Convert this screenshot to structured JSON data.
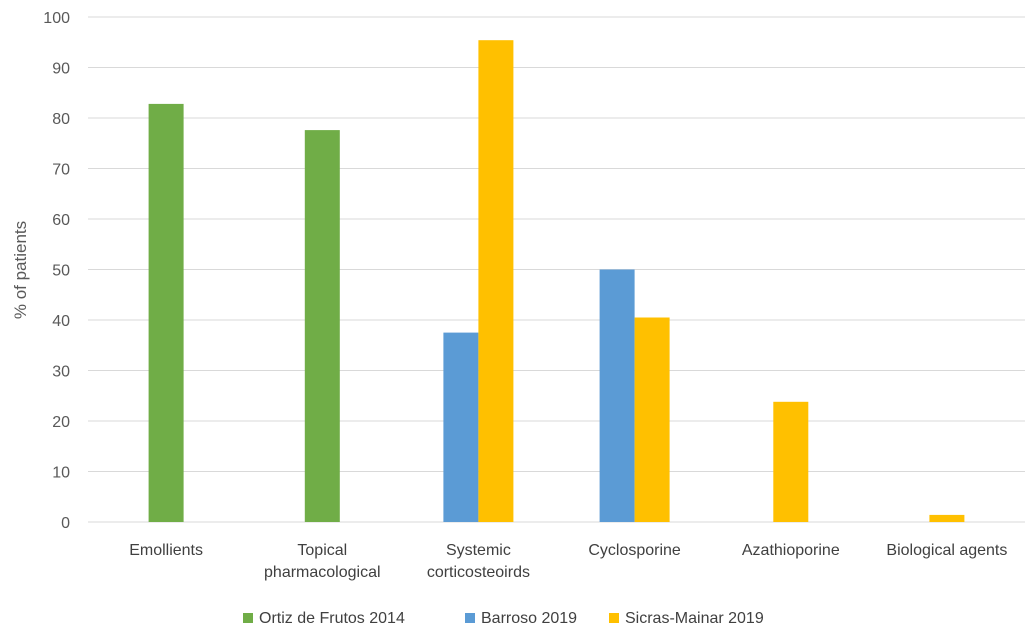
{
  "chart_data": {
    "type": "bar",
    "title": "",
    "xlabel": "",
    "ylabel": "% of patients",
    "ylim": [
      0,
      100
    ],
    "yticks": [
      0,
      10,
      20,
      30,
      40,
      50,
      60,
      70,
      80,
      90,
      100
    ],
    "grid": true,
    "legend_position": "bottom",
    "categories": [
      [
        "Emollients"
      ],
      [
        "Topical",
        "pharmacological"
      ],
      [
        "Systemic",
        "corticosteoirds"
      ],
      [
        "Cyclosporine"
      ],
      [
        "Azathioporine"
      ],
      [
        "Biological agents"
      ]
    ],
    "series": [
      {
        "name": "Ortiz de Frutos 2014",
        "color": "#70ad47",
        "values": [
          82.8,
          77.6,
          null,
          null,
          null,
          null
        ]
      },
      {
        "name": "Barroso 2019",
        "color": "#5b9bd5",
        "values": [
          null,
          null,
          37.5,
          50.0,
          null,
          null
        ]
      },
      {
        "name": "Sicras-Mainar 2019",
        "color": "#ffc000",
        "values": [
          null,
          null,
          95.4,
          40.5,
          23.8,
          1.4
        ]
      }
    ]
  }
}
